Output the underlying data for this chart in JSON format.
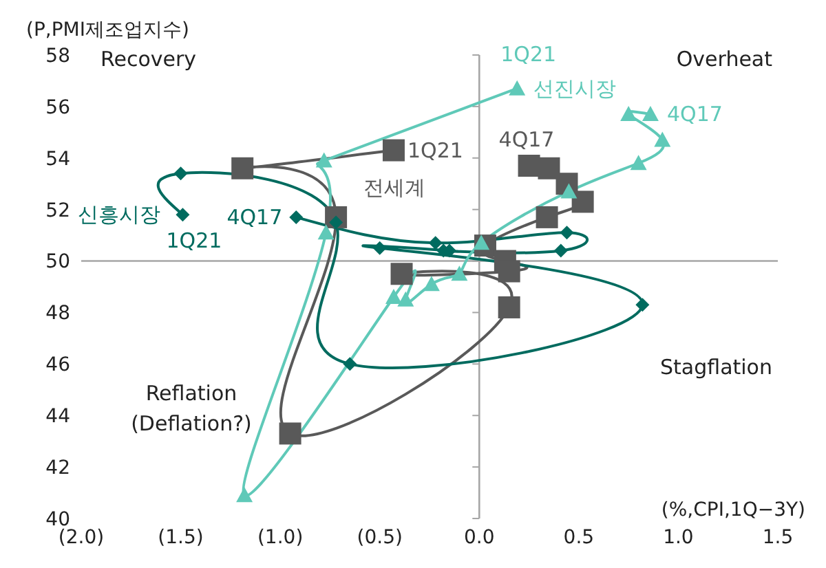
{
  "chart_data": {
    "type": "line",
    "xlabel": "(%,CPI,1Q−3Y)",
    "ylabel": "(P,PMI제조업지수)",
    "xlim": [
      -2,
      1.5
    ],
    "xticks": [
      {
        "value": -2,
        "label": "(2.0)"
      },
      {
        "value": -1.5,
        "label": "(1.5)"
      },
      {
        "value": -1,
        "label": "(1.0)"
      },
      {
        "value": -0.5,
        "label": "(0.5)"
      },
      {
        "value": 0,
        "label": "0.0"
      },
      {
        "value": 0.5,
        "label": "0.5"
      },
      {
        "value": 1,
        "label": "1.0"
      },
      {
        "value": 1.5,
        "label": "1.5"
      }
    ],
    "ylim": [
      40,
      58
    ],
    "yticks": [
      40,
      42,
      44,
      46,
      48,
      50,
      52,
      54,
      56,
      58
    ],
    "grid": false,
    "legend": false,
    "ref_lines": [
      {
        "axis": "x",
        "value": 0,
        "color": "#a6a6a6"
      },
      {
        "axis": "y",
        "value": 50,
        "color": "#a6a6a6"
      }
    ],
    "series": [
      {
        "name": "전세계",
        "color": "#595959",
        "marker": "square",
        "x": [
          0.25,
          0.35,
          0.44,
          0.52,
          0.34,
          0.03,
          0.13,
          0.15,
          -0.39,
          0.15,
          -0.95,
          -0.72,
          -1.19,
          -0.43
        ],
        "values": [
          53.7,
          53.6,
          53.0,
          52.3,
          51.7,
          50.6,
          50.0,
          49.6,
          49.5,
          48.2,
          43.3,
          51.7,
          53.6,
          54.3
        ]
      },
      {
        "name": "신흥시장",
        "color": "#006b5f",
        "marker": "diamond",
        "x": [
          -0.92,
          -0.22,
          0.44,
          0.41,
          -0.18,
          -0.15,
          -0.5,
          0.82,
          -0.65,
          -0.72,
          -1.5,
          -1.49
        ],
        "values": [
          51.7,
          50.7,
          51.1,
          50.4,
          50.4,
          50.4,
          50.5,
          48.3,
          46.0,
          51.5,
          53.4,
          51.8
        ]
      },
      {
        "name": "선진시장",
        "color": "#5fc9b8",
        "marker": "triangle",
        "x": [
          0.86,
          0.75,
          0.92,
          0.8,
          0.45,
          0.01,
          -0.1,
          -0.24,
          -0.37,
          -0.43,
          -1.18,
          -0.77,
          -0.78,
          0.19
        ],
        "values": [
          55.7,
          55.7,
          54.7,
          53.8,
          52.7,
          50.7,
          49.5,
          49.1,
          48.5,
          48.6,
          40.9,
          51.1,
          53.9,
          56.7
        ]
      }
    ],
    "annotations": [
      "Recovery",
      "Overheat",
      "Reflation\n(Deflation?)",
      "Stagflation",
      {
        "text": "1Q21",
        "x": -0.43,
        "y": 54.3
      },
      {
        "text": "4Q17",
        "x": 0.25,
        "y": 53.7
      },
      {
        "text": "4Q17",
        "x": -0.92,
        "y": 51.7
      },
      {
        "text": "1Q21",
        "x": -1.49,
        "y": 51.8
      },
      {
        "text": "1Q21",
        "x": 0.19,
        "y": 56.7
      },
      {
        "text": "4Q17",
        "x": 0.86,
        "y": 55.7
      }
    ]
  }
}
